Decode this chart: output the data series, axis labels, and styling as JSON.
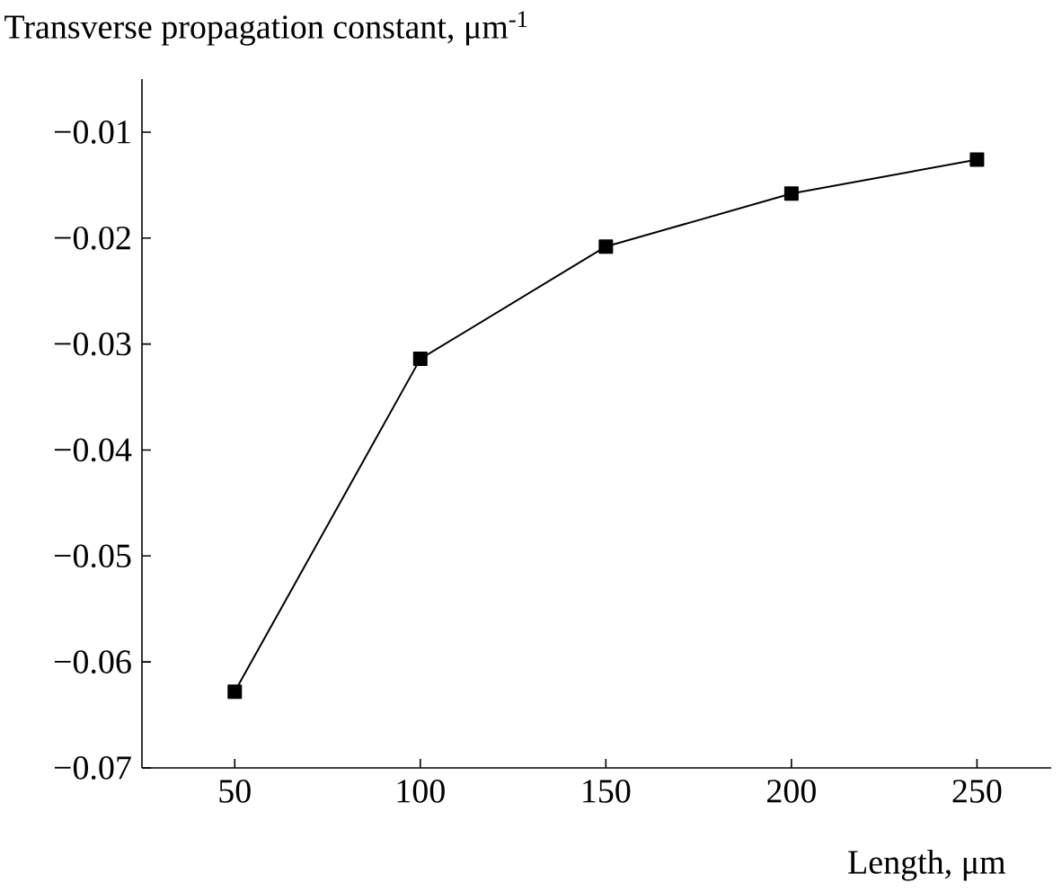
{
  "chart_data": {
    "type": "line",
    "xlabel": "Length, μm",
    "ylabel": "Transverse propagation constant, μm$^{-1}$",
    "x": [
      50,
      100,
      150,
      200,
      250
    ],
    "series": [
      {
        "color": "#000000",
        "values": [
          -0.0628,
          -0.0314,
          -0.0208,
          -0.0158,
          -0.0126
        ]
      }
    ],
    "xlim": [
      25,
      270
    ],
    "ylim": [
      -0.07,
      -0.005
    ],
    "xticks": [
      50,
      100,
      150,
      200,
      250
    ],
    "yticks": [
      {
        "value": -0.07,
        "label": "−0.07"
      },
      {
        "value": -0.06,
        "label": "−0.06"
      },
      {
        "value": -0.05,
        "label": "−0.05"
      },
      {
        "value": -0.04,
        "label": "−0.04"
      },
      {
        "value": -0.03,
        "label": "−0.03"
      },
      {
        "value": -0.02,
        "label": "−0.02"
      },
      {
        "value": -0.01,
        "label": "−0.01"
      }
    ],
    "marker": "square",
    "line_style": "solid"
  }
}
